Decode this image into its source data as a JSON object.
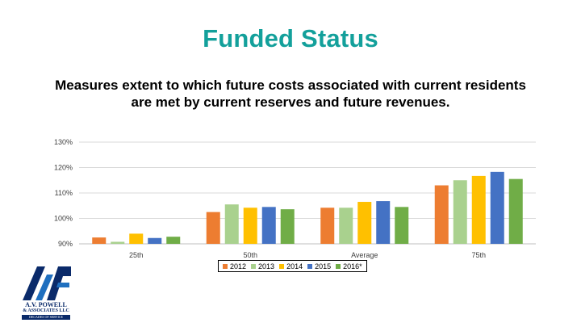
{
  "slide": {
    "title": "Funded Status",
    "subtitle": "Measures extent to which future costs associated with current residents are met by current reserves and future revenues."
  },
  "logo": {
    "name": "A.V. POWELL",
    "sub": "& ASSOCIATES LLC",
    "strip": "DECADES OF SERVICE"
  },
  "chart_data": {
    "type": "bar",
    "categories": [
      "25th",
      "50th",
      "Average",
      "75th"
    ],
    "series": [
      {
        "name": "2012",
        "color": "#ed7d31",
        "values": [
          92.5,
          102.5,
          104.2,
          113
        ]
      },
      {
        "name": "2013",
        "color": "#a9d18e",
        "values": [
          90.8,
          105.5,
          104.2,
          115
        ]
      },
      {
        "name": "2014",
        "color": "#ffc000",
        "values": [
          94,
          104.2,
          106.5,
          116.7
        ]
      },
      {
        "name": "2015",
        "color": "#4472c4",
        "values": [
          92.3,
          104.5,
          106.8,
          118.3
        ]
      },
      {
        "name": "2016*",
        "color": "#70ad47",
        "values": [
          92.8,
          103.6,
          104.5,
          115.5
        ]
      }
    ],
    "y_ticks": [
      "130%",
      "120%",
      "110%",
      "100%",
      "90%"
    ],
    "ylim": [
      90,
      130
    ],
    "grid": true,
    "legend_position": "bottom"
  }
}
